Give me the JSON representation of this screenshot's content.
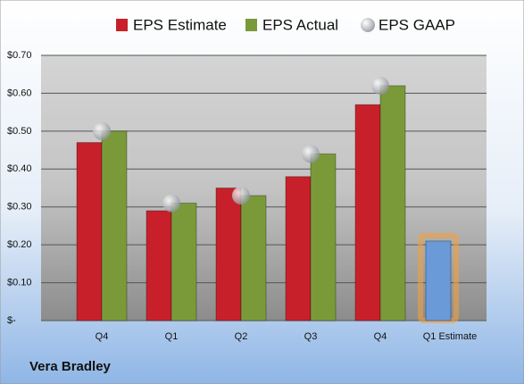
{
  "chart_data": {
    "type": "bar",
    "title": "Vera Bradley",
    "categories": [
      "Q4",
      "Q1",
      "Q2",
      "Q3",
      "Q4",
      "Q1 Estimate"
    ],
    "series": [
      {
        "name": "EPS Estimate",
        "color": "#c8202a",
        "values": [
          0.47,
          0.29,
          0.35,
          0.38,
          0.57,
          0.21
        ],
        "colors": [
          "#c8202a",
          "#c8202a",
          "#c8202a",
          "#c8202a",
          "#c8202a",
          "#6a9ad8"
        ]
      },
      {
        "name": "EPS Actual",
        "color": "#7a9a3a",
        "values": [
          0.5,
          0.31,
          0.33,
          0.44,
          0.62,
          null
        ]
      },
      {
        "name": "EPS GAAP",
        "color": "#b8bcc4",
        "type": "scatter",
        "values": [
          0.5,
          0.31,
          0.33,
          0.44,
          0.62,
          null
        ]
      }
    ],
    "ylim": [
      0,
      0.7
    ],
    "yticks": [
      {
        "value": 0,
        "label": "$-"
      },
      {
        "value": 0.1,
        "label": "$0.10"
      },
      {
        "value": 0.2,
        "label": "$0.20"
      },
      {
        "value": 0.3,
        "label": "$0.30"
      },
      {
        "value": 0.4,
        "label": "$0.40"
      },
      {
        "value": 0.5,
        "label": "$0.50"
      },
      {
        "value": 0.6,
        "label": "$0.60"
      },
      {
        "value": 0.7,
        "label": "$0.70"
      }
    ],
    "grid": true
  }
}
